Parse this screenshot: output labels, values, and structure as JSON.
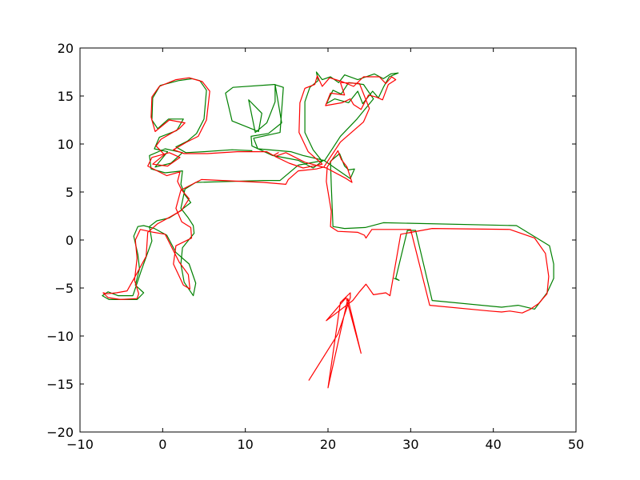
{
  "chart_data": {
    "type": "line",
    "title": "",
    "xlabel": "",
    "ylabel": "",
    "xlim": [
      -10,
      50
    ],
    "ylim": [
      -20,
      20
    ],
    "grid": false,
    "legend": "none",
    "x_ticks": [
      -10,
      0,
      10,
      20,
      30,
      40,
      50
    ],
    "y_ticks": [
      -20,
      -15,
      -10,
      -5,
      0,
      5,
      10,
      15,
      20
    ],
    "x_tick_labels": [
      "−10",
      "0",
      "10",
      "20",
      "30",
      "40",
      "50"
    ],
    "y_tick_labels": [
      "−20",
      "−15",
      "−10",
      "−5",
      "0",
      "5",
      "10",
      "15",
      "20"
    ],
    "colors": {
      "series_1": "#008000",
      "series_2": "#ff0000"
    },
    "series": [
      {
        "color": "#008000",
        "points": [
          [
            28,
            -4
          ],
          [
            28.6,
            -4.2
          ],
          [
            28.2,
            -4
          ],
          [
            29.6,
            1
          ],
          [
            30.6,
            1
          ],
          [
            32.6,
            -6.3
          ],
          [
            41,
            -7
          ],
          [
            43,
            -6.8
          ],
          [
            45,
            -7.2
          ],
          [
            46.5,
            -5.5
          ],
          [
            47.3,
            -4
          ],
          [
            47.3,
            -2.5
          ],
          [
            46.8,
            -0.6
          ],
          [
            42.8,
            1.5
          ],
          [
            26.7,
            1.8
          ],
          [
            24.5,
            1.3
          ],
          [
            22,
            1.2
          ],
          [
            20.6,
            1.4
          ],
          [
            20.4,
            5.7
          ],
          [
            20.3,
            8.2
          ],
          [
            21.4,
            9
          ],
          [
            22,
            7.7
          ],
          [
            22.5,
            7.3
          ],
          [
            23.2,
            7.4
          ],
          [
            22.7,
            6.4
          ],
          [
            19.5,
            8.3
          ],
          [
            17,
            8.8
          ],
          [
            15.5,
            9.2
          ],
          [
            11.5,
            9.5
          ],
          [
            11,
            10.6
          ],
          [
            14.2,
            11.2
          ],
          [
            14.6,
            15.9
          ],
          [
            13.5,
            16.2
          ],
          [
            8.5,
            15.9
          ],
          [
            7.6,
            15.3
          ],
          [
            8.4,
            12.4
          ],
          [
            11.6,
            11.3
          ],
          [
            12,
            13.2
          ],
          [
            10.4,
            14.6
          ],
          [
            11.2,
            11.2
          ],
          [
            12.6,
            12.2
          ],
          [
            13.6,
            14.4
          ],
          [
            13.6,
            16.2
          ],
          [
            14.4,
            12.2
          ],
          [
            12.8,
            11.1
          ],
          [
            10.7,
            10.8
          ],
          [
            10.8,
            9.8
          ],
          [
            13.3,
            8.8
          ],
          [
            16.4,
            8.3
          ],
          [
            18.2,
            7.5
          ],
          [
            19.3,
            8.2
          ],
          [
            18.2,
            9.4
          ],
          [
            17.2,
            11.2
          ],
          [
            17.2,
            14.4
          ],
          [
            17.8,
            15.9
          ],
          [
            18.8,
            16.6
          ],
          [
            18.6,
            17.5
          ],
          [
            19.3,
            16.7
          ],
          [
            20.3,
            17
          ],
          [
            21.3,
            16.4
          ],
          [
            22,
            17.2
          ],
          [
            23.6,
            16.7
          ],
          [
            25.6,
            17.3
          ],
          [
            26.7,
            16.8
          ],
          [
            27.6,
            17.3
          ],
          [
            28.5,
            17.4
          ],
          [
            27.4,
            17
          ],
          [
            26.7,
            15.9
          ],
          [
            26.1,
            14.8
          ],
          [
            25.4,
            15.5
          ],
          [
            24.2,
            14.2
          ],
          [
            23.6,
            15.5
          ],
          [
            22.5,
            14.3
          ],
          [
            20.8,
            14.7
          ],
          [
            19.8,
            14.2
          ],
          [
            20.6,
            15.6
          ],
          [
            21.6,
            15.2
          ],
          [
            22.5,
            16.4
          ],
          [
            24.3,
            16.2
          ],
          [
            25.5,
            14.7
          ],
          [
            23.5,
            12.6
          ],
          [
            21.5,
            10.8
          ],
          [
            20.6,
            9.6
          ],
          [
            19.6,
            8.3
          ],
          [
            16.4,
            7.8
          ],
          [
            14.2,
            6.2
          ],
          [
            12.2,
            6.2
          ],
          [
            4,
            6
          ],
          [
            2.7,
            5.3
          ],
          [
            2.2,
            3.3
          ],
          [
            3.1,
            2.3
          ],
          [
            3.7,
            1.5
          ],
          [
            3.8,
            0.7
          ],
          [
            2.4,
            -0.8
          ],
          [
            2.2,
            -2.5
          ],
          [
            2.6,
            -4.4
          ],
          [
            3.7,
            -5.8
          ],
          [
            4,
            -4.5
          ],
          [
            3.2,
            -2.5
          ],
          [
            1.6,
            -1.3
          ],
          [
            0.5,
            0.5
          ],
          [
            -1,
            1.2
          ],
          [
            -2.3,
            1.5
          ],
          [
            -3,
            1.4
          ],
          [
            -3.5,
            0.4
          ],
          [
            -3,
            -1.5
          ],
          [
            -2.8,
            -3
          ],
          [
            -3.3,
            -4.7
          ],
          [
            -2.3,
            -5.5
          ],
          [
            -3.1,
            -6.2
          ],
          [
            -5,
            -6.2
          ],
          [
            -6.5,
            -6.2
          ],
          [
            -7.3,
            -5.8
          ],
          [
            -6.6,
            -5.4
          ],
          [
            -5.4,
            -5.8
          ],
          [
            -3.6,
            -5.8
          ],
          [
            -2.6,
            -3.2
          ],
          [
            -1.3,
            -0.1
          ],
          [
            -1.6,
            1.4
          ],
          [
            -0.7,
            2
          ],
          [
            0.8,
            2.3
          ],
          [
            1.9,
            2.9
          ],
          [
            3.4,
            3.9
          ],
          [
            2.7,
            4.7
          ],
          [
            2.2,
            5.8
          ],
          [
            2.4,
            7.2
          ],
          [
            0.3,
            7
          ],
          [
            -1.4,
            7.4
          ],
          [
            -1.6,
            8.8
          ],
          [
            0.3,
            9.5
          ],
          [
            2.4,
            9.1
          ],
          [
            1,
            8
          ],
          [
            -0.9,
            7.6
          ],
          [
            0.6,
            9.2
          ],
          [
            -1,
            9.5
          ],
          [
            -0.4,
            10.7
          ],
          [
            1.7,
            11.4
          ],
          [
            2.5,
            12.6
          ],
          [
            0.7,
            12.6
          ],
          [
            -0.6,
            11.6
          ],
          [
            -1.3,
            12.5
          ],
          [
            -1.2,
            14.8
          ],
          [
            -0.3,
            16.1
          ],
          [
            1.9,
            16.6
          ],
          [
            3.6,
            16.8
          ],
          [
            4.5,
            16.6
          ],
          [
            5.3,
            15.6
          ],
          [
            5,
            12.6
          ],
          [
            4.1,
            11.1
          ],
          [
            3,
            10.3
          ],
          [
            1.6,
            9.7
          ],
          [
            2.8,
            9.1
          ],
          [
            5,
            9.2
          ],
          [
            8.4,
            9.4
          ],
          [
            10.8,
            9.3
          ]
        ]
      },
      {
        "color": "#ff0000",
        "points": [
          [
            17.7,
            -14.6
          ],
          [
            21.2,
            -9.8
          ],
          [
            22.7,
            -6
          ],
          [
            22.7,
            -5.5
          ],
          [
            21.5,
            -6.5
          ],
          [
            20,
            -15.4
          ],
          [
            22.4,
            -6.1
          ],
          [
            24,
            -11.8
          ],
          [
            22.2,
            -6
          ],
          [
            19.8,
            -8.4
          ],
          [
            23,
            -6.3
          ],
          [
            23.8,
            -5.4
          ],
          [
            24.6,
            -4.6
          ],
          [
            25.5,
            -5.7
          ],
          [
            27,
            -5.5
          ],
          [
            27.5,
            -5.8
          ],
          [
            28.8,
            0.6
          ],
          [
            32.6,
            1.2
          ],
          [
            42,
            1.1
          ],
          [
            45,
            0.2
          ],
          [
            46.3,
            -1.4
          ],
          [
            46.7,
            -3.8
          ],
          [
            46.5,
            -5.6
          ],
          [
            45.5,
            -6.6
          ],
          [
            44.5,
            -7.2
          ],
          [
            43.5,
            -7.6
          ],
          [
            42,
            -7.4
          ],
          [
            41,
            -7.5
          ],
          [
            39.6,
            -7.4
          ],
          [
            32.3,
            -6.8
          ],
          [
            30,
            1.1
          ],
          [
            25.3,
            1.1
          ],
          [
            24.6,
            0.2
          ],
          [
            24.4,
            0.5
          ],
          [
            23.6,
            0.8
          ],
          [
            21.2,
            0.9
          ],
          [
            20.3,
            1.4
          ],
          [
            20.4,
            3
          ],
          [
            19.8,
            6.1
          ],
          [
            19.9,
            7.6
          ],
          [
            21.2,
            9.3
          ],
          [
            21.6,
            8.4
          ],
          [
            22.3,
            7.6
          ],
          [
            22.9,
            6
          ],
          [
            22.2,
            6.4
          ],
          [
            19.8,
            7.5
          ],
          [
            17.2,
            8.1
          ],
          [
            14.9,
            9.1
          ],
          [
            13.6,
            8.7
          ],
          [
            15.3,
            8
          ],
          [
            17,
            7.5
          ],
          [
            19.3,
            7.9
          ],
          [
            17.6,
            9.2
          ],
          [
            16.5,
            11.2
          ],
          [
            16.6,
            14.3
          ],
          [
            17.2,
            15.8
          ],
          [
            18.4,
            16.2
          ],
          [
            18.7,
            17.1
          ],
          [
            19.3,
            16
          ],
          [
            20.2,
            16.9
          ],
          [
            21.7,
            16.5
          ],
          [
            23.1,
            16
          ],
          [
            24.3,
            17
          ],
          [
            26.2,
            17
          ],
          [
            27,
            16.3
          ],
          [
            27.7,
            17
          ],
          [
            28.2,
            16.7
          ],
          [
            27.3,
            16.2
          ],
          [
            26.6,
            14.6
          ],
          [
            25.8,
            14.9
          ],
          [
            24.9,
            15.1
          ],
          [
            24,
            13.6
          ],
          [
            23.1,
            14.1
          ],
          [
            22.7,
            14.7
          ],
          [
            21.7,
            14.3
          ],
          [
            19.7,
            14
          ],
          [
            20.3,
            15.3
          ],
          [
            22,
            15.1
          ],
          [
            21.5,
            16.4
          ],
          [
            23.8,
            16.3
          ],
          [
            25,
            13.7
          ],
          [
            24.3,
            12.3
          ],
          [
            21.5,
            10.2
          ],
          [
            19.5,
            7.6
          ],
          [
            18.6,
            7.4
          ],
          [
            16.4,
            7.2
          ],
          [
            15.2,
            6.3
          ],
          [
            14.9,
            5.8
          ],
          [
            12.2,
            6
          ],
          [
            4.7,
            6.3
          ],
          [
            2.2,
            5.2
          ],
          [
            1.6,
            3.3
          ],
          [
            2.3,
            1.9
          ],
          [
            3.4,
            1.3
          ],
          [
            3.5,
            0.2
          ],
          [
            1.6,
            -0.6
          ],
          [
            1.3,
            -2.5
          ],
          [
            2.5,
            -4.7
          ],
          [
            3.3,
            -5.1
          ],
          [
            3.1,
            -3.6
          ],
          [
            2,
            -2.3
          ],
          [
            0.3,
            0.6
          ],
          [
            -1.1,
            0.8
          ],
          [
            -2.7,
            1.1
          ],
          [
            -3.3,
            0
          ],
          [
            -3.1,
            -1.9
          ],
          [
            -3.4,
            -4.2
          ],
          [
            -2.9,
            -5.6
          ],
          [
            -3.1,
            -6.1
          ],
          [
            -5.1,
            -6.2
          ],
          [
            -6.6,
            -6
          ],
          [
            -7.2,
            -5.5
          ],
          [
            -6.7,
            -5.6
          ],
          [
            -5.6,
            -5.5
          ],
          [
            -4.3,
            -5.3
          ],
          [
            -3.2,
            -3.6
          ],
          [
            -2,
            -1.7
          ],
          [
            -1.8,
            0.8
          ],
          [
            -0.6,
            1.7
          ],
          [
            0.9,
            2.4
          ],
          [
            2.3,
            3.1
          ],
          [
            3.2,
            4.3
          ],
          [
            2.3,
            5.2
          ],
          [
            1.8,
            6.1
          ],
          [
            2.1,
            7.1
          ],
          [
            0.5,
            6.7
          ],
          [
            -1.8,
            7.7
          ],
          [
            -1.3,
            8.6
          ],
          [
            0.8,
            9.1
          ],
          [
            2.1,
            8.6
          ],
          [
            0.6,
            7.7
          ],
          [
            -1.2,
            7.9
          ],
          [
            0.2,
            8.9
          ],
          [
            -0.8,
            9.8
          ],
          [
            -0.2,
            10.5
          ],
          [
            2,
            11.6
          ],
          [
            2.7,
            12.2
          ],
          [
            0.8,
            12.5
          ],
          [
            -0.9,
            11.3
          ],
          [
            -1.4,
            12.8
          ],
          [
            -1.3,
            14.9
          ],
          [
            -0.4,
            16
          ],
          [
            1.6,
            16.7
          ],
          [
            3.2,
            16.9
          ],
          [
            4.8,
            16.5
          ],
          [
            5.7,
            15.5
          ],
          [
            5.3,
            12.5
          ],
          [
            4.3,
            10.8
          ],
          [
            2.9,
            10.2
          ],
          [
            1.3,
            9.4
          ],
          [
            2.6,
            9
          ],
          [
            5.4,
            9
          ],
          [
            9,
            9.2
          ],
          [
            12.6,
            9.2
          ],
          [
            13.4,
            8.8
          ],
          [
            14,
            9.1
          ]
        ]
      }
    ]
  }
}
